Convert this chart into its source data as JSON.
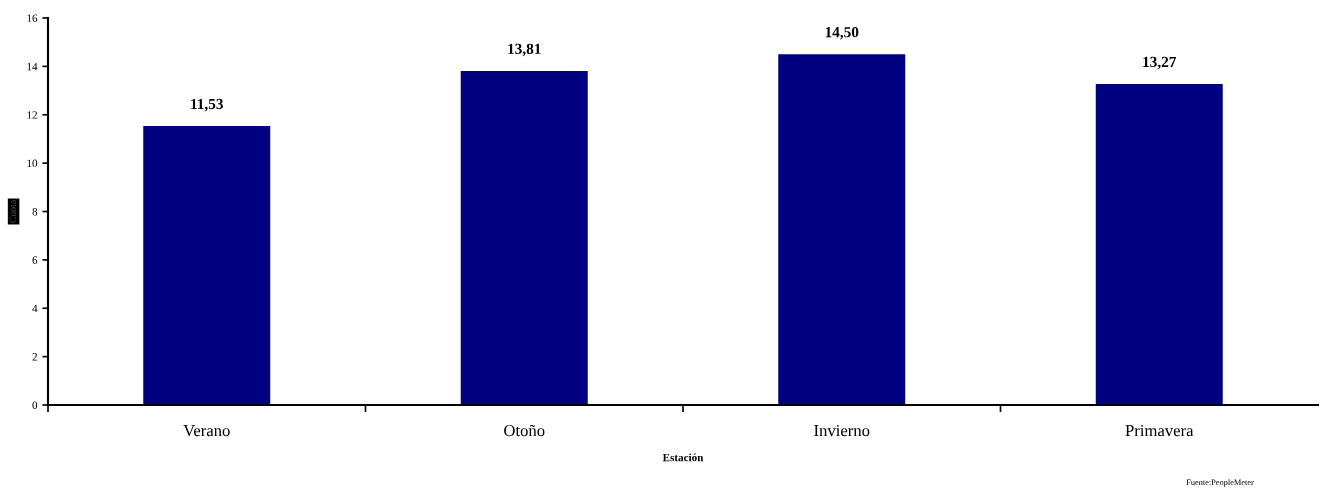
{
  "chart_data": {
    "type": "bar",
    "xlabel": "Estación",
    "ylabel": "Cuota",
    "categories": [
      "Verano",
      "Otoño",
      "Invierno",
      "Primavera"
    ],
    "values": [
      11.53,
      13.81,
      14.5,
      13.27
    ],
    "value_labels": [
      "11,53",
      "13,81",
      "14,50",
      "13,27"
    ],
    "color": "#000080",
    "ylim": [
      0,
      16
    ],
    "yticks": [
      0,
      2,
      4,
      6,
      8,
      10,
      12,
      14,
      16
    ],
    "grid": false,
    "annotations": [
      "Fuente:PeopleMeter"
    ]
  }
}
